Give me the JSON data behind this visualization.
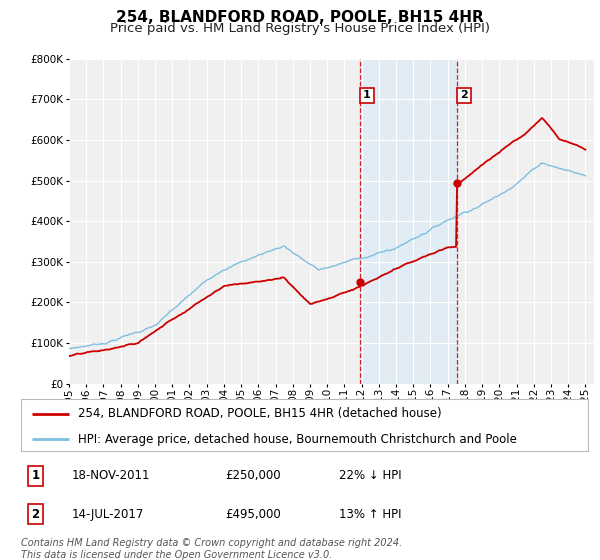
{
  "title": "254, BLANDFORD ROAD, POOLE, BH15 4HR",
  "subtitle": "Price paid vs. HM Land Registry's House Price Index (HPI)",
  "ylim": [
    0,
    800000
  ],
  "xlim_start": 1995.0,
  "xlim_end": 2025.5,
  "background_color": "#ffffff",
  "plot_bg_color": "#f0f0f0",
  "grid_color": "#ffffff",
  "hpi_line_color": "#7fbfdf",
  "price_line_color": "#cc0000",
  "sale1_date": 2011.89,
  "sale1_price": 250000,
  "sale1_label": "1",
  "sale1_text": "18-NOV-2011",
  "sale1_pct": "22% ↓ HPI",
  "sale2_date": 2017.53,
  "sale2_price": 495000,
  "sale2_label": "2",
  "sale2_text": "14-JUL-2017",
  "sale2_pct": "13% ↑ HPI",
  "shaded_region_color": "#d8eaf7",
  "shaded_region_alpha": 0.6,
  "legend_line1": "254, BLANDFORD ROAD, POOLE, BH15 4HR (detached house)",
  "legend_line2": "HPI: Average price, detached house, Bournemouth Christchurch and Poole",
  "footer": "Contains HM Land Registry data © Crown copyright and database right 2024.\nThis data is licensed under the Open Government Licence v3.0.",
  "title_fontsize": 11,
  "subtitle_fontsize": 9.5,
  "tick_fontsize": 7.5,
  "legend_fontsize": 8.5,
  "footer_fontsize": 7.0,
  "ytick_labels": [
    "£0",
    "£100K",
    "£200K",
    "£300K",
    "£400K",
    "£500K",
    "£600K",
    "£700K",
    "£800K"
  ],
  "ytick_values": [
    0,
    100000,
    200000,
    300000,
    400000,
    500000,
    600000,
    700000,
    800000
  ]
}
